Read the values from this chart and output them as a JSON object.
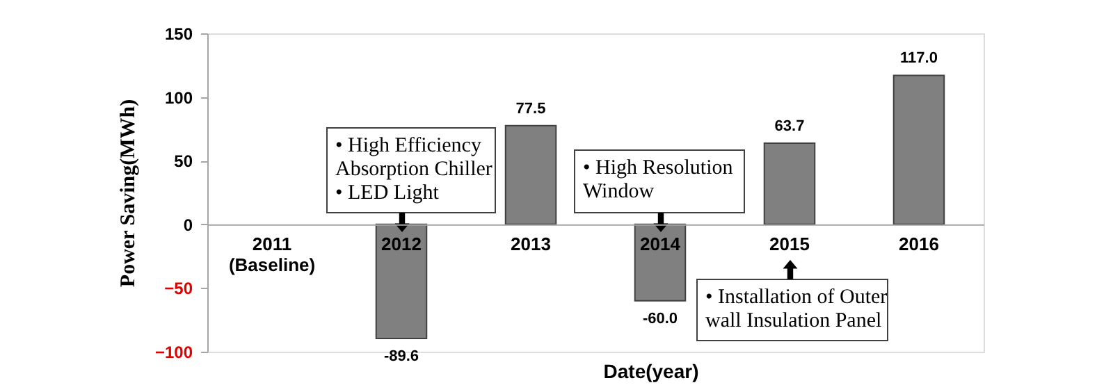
{
  "chart_data": {
    "type": "bar",
    "categories": [
      "2011\n(Baseline)",
      "2012",
      "2013",
      "2014",
      "2015",
      "2016"
    ],
    "values": [
      null,
      -89.6,
      77.5,
      -60.0,
      63.7,
      117.0
    ],
    "value_labels": [
      null,
      "-89.6",
      "77.5",
      "-60.0",
      "63.7",
      "117.0"
    ],
    "color": "#808080",
    "ylabel": "Power Saving(MWh)",
    "xlabel": "Date(year)",
    "ylim": [
      -100,
      150
    ],
    "yticks": [
      -100,
      -50,
      0,
      50,
      100,
      150
    ],
    "grid": false,
    "annotations": [
      "• High Efficiency\nAbsorption Chiller\n• LED Light",
      "• High Resolution\nWindow",
      "• Installation of Outer\nwall Insulation Panel"
    ]
  }
}
